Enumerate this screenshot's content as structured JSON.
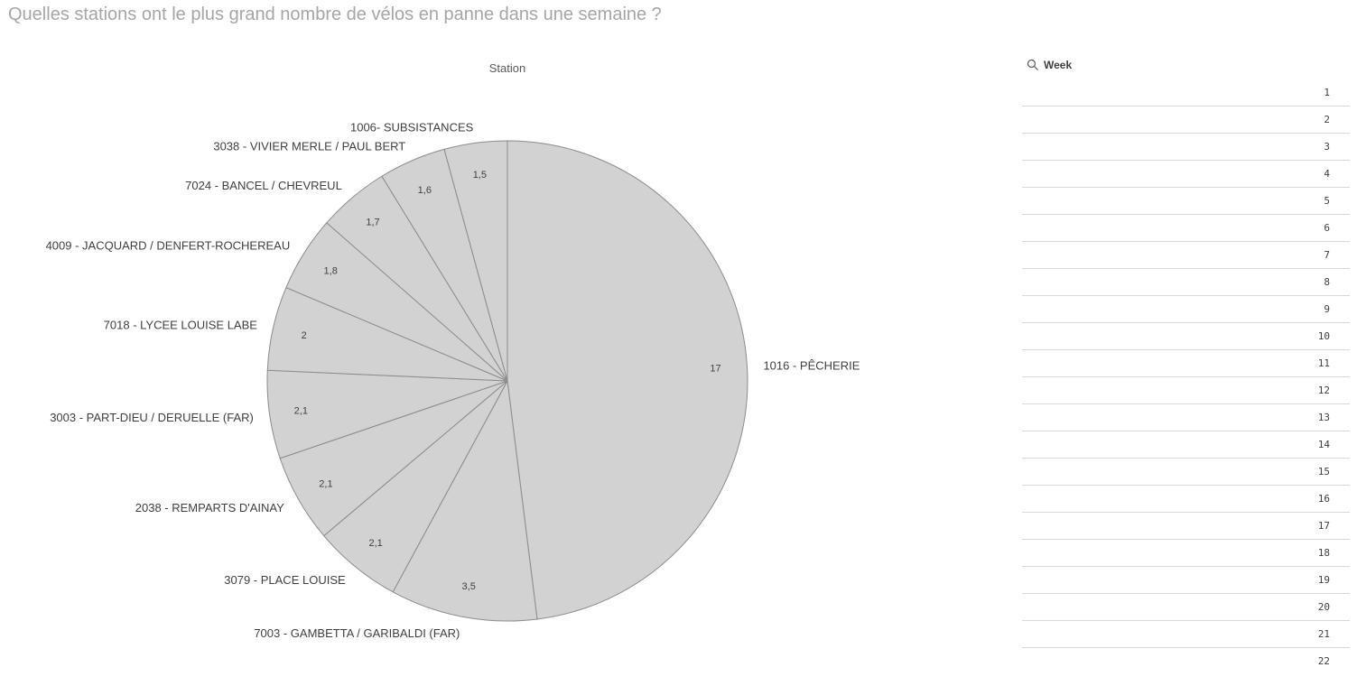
{
  "page": {
    "title": "Quelles stations ont le plus grand nombre de vélos en panne dans une semaine ?"
  },
  "chart_data": {
    "type": "pie",
    "title": "Station",
    "slice_color": "#d2d2d2",
    "border_color": "#8c8c8c",
    "start": "12 o'clock, clockwise",
    "slices": [
      {
        "label": "1016 - PÊCHERIE",
        "value": 17,
        "value_label": "17"
      },
      {
        "label": "7003 - GAMBETTA / GARIBALDI (FAR)",
        "value": 3.5,
        "value_label": "3,5"
      },
      {
        "label": "3079 - PLACE LOUISE",
        "value": 2.1,
        "value_label": "2,1"
      },
      {
        "label": "2038 - REMPARTS D'AINAY",
        "value": 2.1,
        "value_label": "2,1"
      },
      {
        "label": "3003 - PART-DIEU / DERUELLE (FAR)",
        "value": 2.1,
        "value_label": "2,1"
      },
      {
        "label": "7018 - LYCEE LOUISE LABE",
        "value": 2,
        "value_label": "2"
      },
      {
        "label": "4009 - JACQUARD / DENFERT-ROCHEREAU",
        "value": 1.8,
        "value_label": "1,8"
      },
      {
        "label": "7024 - BANCEL / CHEVREUL",
        "value": 1.7,
        "value_label": "1,7"
      },
      {
        "label": "3038 - VIVIER MERLE / PAUL BERT",
        "value": 1.6,
        "value_label": "1,6"
      },
      {
        "label": "1006- SUBSISTANCES",
        "value": 1.5,
        "value_label": "1,5"
      }
    ]
  },
  "filter": {
    "title": "Week",
    "icon": "search-icon",
    "items": [
      "1",
      "2",
      "3",
      "4",
      "5",
      "6",
      "7",
      "8",
      "9",
      "10",
      "11",
      "12",
      "13",
      "14",
      "15",
      "16",
      "17",
      "18",
      "19",
      "20",
      "21",
      "22"
    ]
  }
}
